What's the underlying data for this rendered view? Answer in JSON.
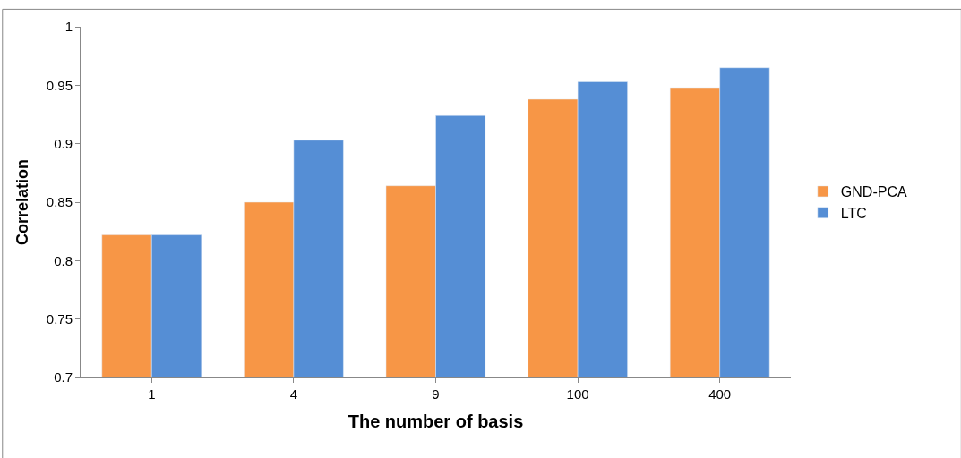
{
  "chart_data": {
    "type": "bar",
    "xlabel": "The number of basis",
    "ylabel": "Correlation",
    "categories": [
      "1",
      "4",
      "9",
      "100",
      "400"
    ],
    "series": [
      {
        "name": "GND-PCA",
        "color": "#f79646",
        "values": [
          0.822,
          0.85,
          0.864,
          0.938,
          0.948
        ]
      },
      {
        "name": "LTC",
        "color": "#558ed5",
        "values": [
          0.822,
          0.903,
          0.924,
          0.953,
          0.965
        ]
      }
    ],
    "ylim": [
      0.7,
      1
    ],
    "yticks": [
      0.7,
      0.75,
      0.8,
      0.85,
      0.9,
      0.95,
      1
    ],
    "legend": "right"
  }
}
